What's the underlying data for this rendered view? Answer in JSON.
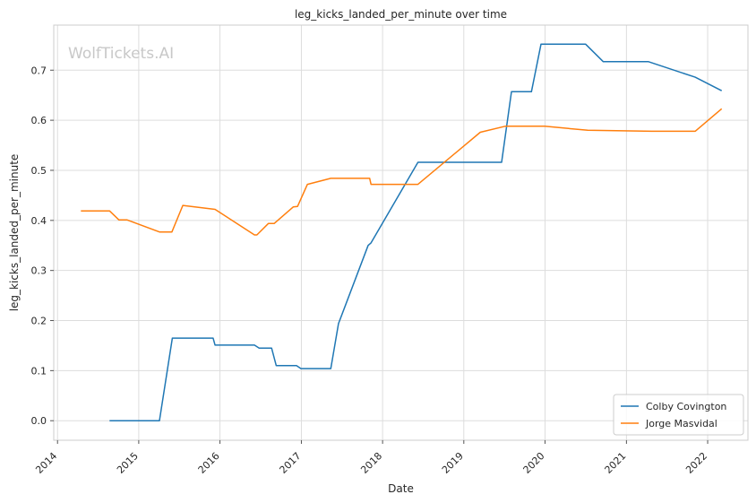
{
  "chart_data": {
    "type": "line",
    "title": "leg_kicks_landed_per_minute over time",
    "xlabel": "Date",
    "ylabel": "leg_kicks_landed_per_minute",
    "watermark": "WolfTickets.AI",
    "x_axis_type": "date",
    "xlim": [
      "2013-12-15",
      "2022-07-01"
    ],
    "ylim": [
      -0.039,
      0.79
    ],
    "x_ticks": [
      "2014",
      "2015",
      "2016",
      "2017",
      "2018",
      "2019",
      "2020",
      "2021",
      "2022"
    ],
    "y_ticks": [
      0.0,
      0.1,
      0.2,
      0.3,
      0.4,
      0.5,
      0.6,
      0.7
    ],
    "grid": true,
    "legend_position": "lower-right",
    "series": [
      {
        "name": "Colby Covington",
        "color": "#1f77b4",
        "points": [
          [
            "2014-08-23",
            0.0
          ],
          [
            "2015-04-04",
            0.0
          ],
          [
            "2015-06-01",
            0.165
          ],
          [
            "2015-12-01",
            0.165
          ],
          [
            "2015-12-10",
            0.151
          ],
          [
            "2016-06-04",
            0.151
          ],
          [
            "2016-06-25",
            0.145
          ],
          [
            "2016-08-20",
            0.145
          ],
          [
            "2016-09-10",
            0.11
          ],
          [
            "2016-12-10",
            0.11
          ],
          [
            "2016-12-30",
            0.104
          ],
          [
            "2017-05-13",
            0.104
          ],
          [
            "2017-06-17",
            0.194
          ],
          [
            "2017-10-28",
            0.35
          ],
          [
            "2017-11-10",
            0.355
          ],
          [
            "2018-06-09",
            0.516
          ],
          [
            "2019-06-20",
            0.516
          ],
          [
            "2019-08-03",
            0.657
          ],
          [
            "2019-11-01",
            0.657
          ],
          [
            "2019-12-14",
            0.752
          ],
          [
            "2020-07-01",
            0.752
          ],
          [
            "2020-09-19",
            0.717
          ],
          [
            "2021-04-10",
            0.717
          ],
          [
            "2021-11-06",
            0.686
          ],
          [
            "2022-03-05",
            0.659
          ]
        ]
      },
      {
        "name": "Jorge Masvidal",
        "color": "#ff7f0e",
        "points": [
          [
            "2014-04-16",
            0.419
          ],
          [
            "2014-08-23",
            0.419
          ],
          [
            "2014-10-04",
            0.401
          ],
          [
            "2014-11-10",
            0.401
          ],
          [
            "2015-04-04",
            0.377
          ],
          [
            "2015-05-30",
            0.377
          ],
          [
            "2015-07-18",
            0.43
          ],
          [
            "2015-12-10",
            0.422
          ],
          [
            "2016-06-04",
            0.371
          ],
          [
            "2016-06-15",
            0.371
          ],
          [
            "2016-08-06",
            0.394
          ],
          [
            "2016-09-01",
            0.394
          ],
          [
            "2016-11-26",
            0.427
          ],
          [
            "2016-12-15",
            0.428
          ],
          [
            "2017-01-28",
            0.472
          ],
          [
            "2017-05-13",
            0.484
          ],
          [
            "2017-11-04",
            0.484
          ],
          [
            "2017-11-10",
            0.472
          ],
          [
            "2018-06-09",
            0.472
          ],
          [
            "2019-03-16",
            0.576
          ],
          [
            "2019-07-06",
            0.588
          ],
          [
            "2019-12-30",
            0.588
          ],
          [
            "2020-07-11",
            0.58
          ],
          [
            "2021-04-24",
            0.578
          ],
          [
            "2021-11-06",
            0.578
          ],
          [
            "2022-03-05",
            0.623
          ]
        ]
      }
    ]
  }
}
